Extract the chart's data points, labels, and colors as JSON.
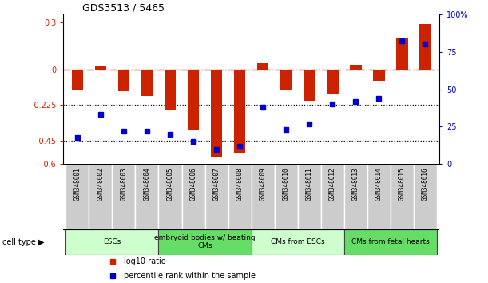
{
  "title": "GDS3513 / 5465",
  "samples": [
    "GSM348001",
    "GSM348002",
    "GSM348003",
    "GSM348004",
    "GSM348005",
    "GSM348006",
    "GSM348007",
    "GSM348008",
    "GSM348009",
    "GSM348010",
    "GSM348011",
    "GSM348012",
    "GSM348013",
    "GSM348014",
    "GSM348015",
    "GSM348016"
  ],
  "log10_ratio": [
    -0.13,
    0.02,
    -0.14,
    -0.17,
    -0.26,
    -0.38,
    -0.56,
    -0.53,
    0.04,
    -0.13,
    -0.2,
    -0.16,
    0.03,
    -0.07,
    0.2,
    0.29
  ],
  "percentile": [
    18,
    33,
    22,
    22,
    20,
    15,
    10,
    12,
    38,
    23,
    27,
    40,
    42,
    44,
    82,
    80
  ],
  "ylim_left": [
    -0.6,
    0.35
  ],
  "ylim_right": [
    0,
    100
  ],
  "bar_color": "#cc2200",
  "dot_color": "#0000cc",
  "groups": [
    {
      "label": "ESCs",
      "start": 0,
      "end": 3,
      "color": "#ccffcc"
    },
    {
      "label": "embryoid bodies w/ beating\nCMs",
      "start": 4,
      "end": 7,
      "color": "#66dd66"
    },
    {
      "label": "CMs from ESCs",
      "start": 8,
      "end": 11,
      "color": "#ccffcc"
    },
    {
      "label": "CMs from fetal hearts",
      "start": 12,
      "end": 15,
      "color": "#66dd66"
    }
  ],
  "legend_label_red": "log10 ratio",
  "legend_label_blue": "percentile rank within the sample",
  "cell_type_label": "cell type",
  "left_yticks": [
    0.3,
    0.0,
    -0.225,
    -0.45,
    -0.6
  ],
  "left_yticklabels": [
    "0.3",
    "0",
    "-0.225",
    "-0.45",
    "-0.6"
  ],
  "right_yticks": [
    0,
    25,
    50,
    75,
    100
  ],
  "right_yticklabels": [
    "0",
    "25",
    "50",
    "75",
    "100%"
  ]
}
